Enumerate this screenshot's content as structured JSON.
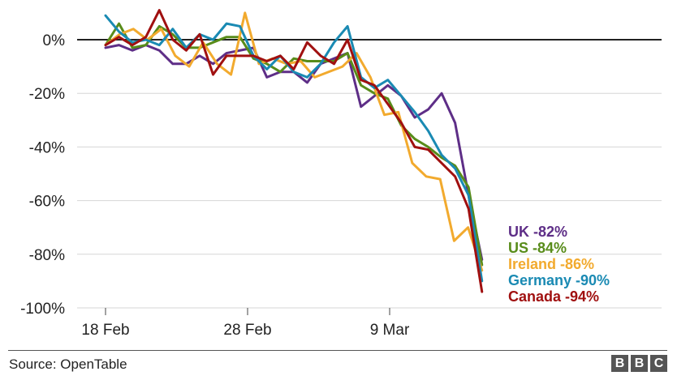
{
  "chart_data": {
    "type": "line",
    "ylim": [
      -100,
      10
    ],
    "y_ticks": [
      {
        "value": 0,
        "label": "0%"
      },
      {
        "value": -20,
        "label": "-20%"
      },
      {
        "value": -40,
        "label": "-40%"
      },
      {
        "value": -60,
        "label": "-60%"
      },
      {
        "value": -80,
        "label": "-80%"
      },
      {
        "value": -100,
        "label": "-100%"
      }
    ],
    "x_ticks": [
      {
        "day": 0,
        "label": "18 Feb"
      },
      {
        "day": 10,
        "label": "28 Feb"
      },
      {
        "day": 20,
        "label": "9 Mar"
      }
    ],
    "x_range": [
      -2,
      39
    ],
    "grid": true,
    "series": [
      {
        "name": "UK",
        "label": "UK -82%",
        "color": "#5e2e87",
        "values": [
          -3,
          -2,
          -4,
          -2,
          -4,
          -9,
          -9,
          -6,
          -9,
          -5,
          -4,
          -3,
          -14,
          -12,
          -12,
          -16,
          -9,
          -7,
          -5,
          -25,
          -21,
          -17,
          -21,
          -29,
          -26,
          -20,
          -31,
          -58,
          -82
        ]
      },
      {
        "name": "US",
        "label": "US -84%",
        "color": "#588c1a",
        "values": [
          -2,
          6,
          -3,
          -2,
          5,
          2,
          -3,
          -3,
          -1,
          1,
          1,
          -7,
          -9,
          -12,
          -7,
          -8,
          -8,
          -8,
          -5,
          -17,
          -20,
          -22,
          -32,
          -37,
          -40,
          -44,
          -47,
          -55,
          -84
        ]
      },
      {
        "name": "Ireland",
        "label": "Ireland -86%",
        "color": "#f2aa2e",
        "values": [
          -2,
          2,
          4,
          0,
          4,
          -6,
          -10,
          -1,
          -9,
          -13,
          10,
          -9,
          -7,
          -9,
          -8,
          -14,
          -12,
          -10,
          -5,
          -14,
          -28,
          -27,
          -46,
          -51,
          -52,
          -75,
          -70,
          -86
        ]
      },
      {
        "name": "Germany",
        "label": "Germany -90%",
        "color": "#1a8ab3",
        "values": [
          9,
          3,
          -1,
          0,
          -2,
          4,
          -3,
          2,
          0,
          6,
          5,
          -6,
          -11,
          -6,
          -12,
          -14,
          -9,
          -1,
          5,
          -14,
          -18,
          -15,
          -21,
          -27,
          -34,
          -43,
          -48,
          -58,
          -90
        ]
      },
      {
        "name": "Canada",
        "label": "Canada -94%",
        "color": "#a01010",
        "values": [
          -2,
          1,
          -2,
          1,
          11,
          0,
          -4,
          2,
          -13,
          -6,
          -6,
          -6,
          -8,
          -6,
          -11,
          -1,
          -6,
          -9,
          0,
          -15,
          -17,
          -24,
          -31,
          -40,
          -41,
          -46,
          -51,
          -63,
          -94
        ]
      }
    ]
  },
  "footer": {
    "source": "Source: OpenTable",
    "logo_letters": [
      "B",
      "B",
      "C"
    ]
  }
}
